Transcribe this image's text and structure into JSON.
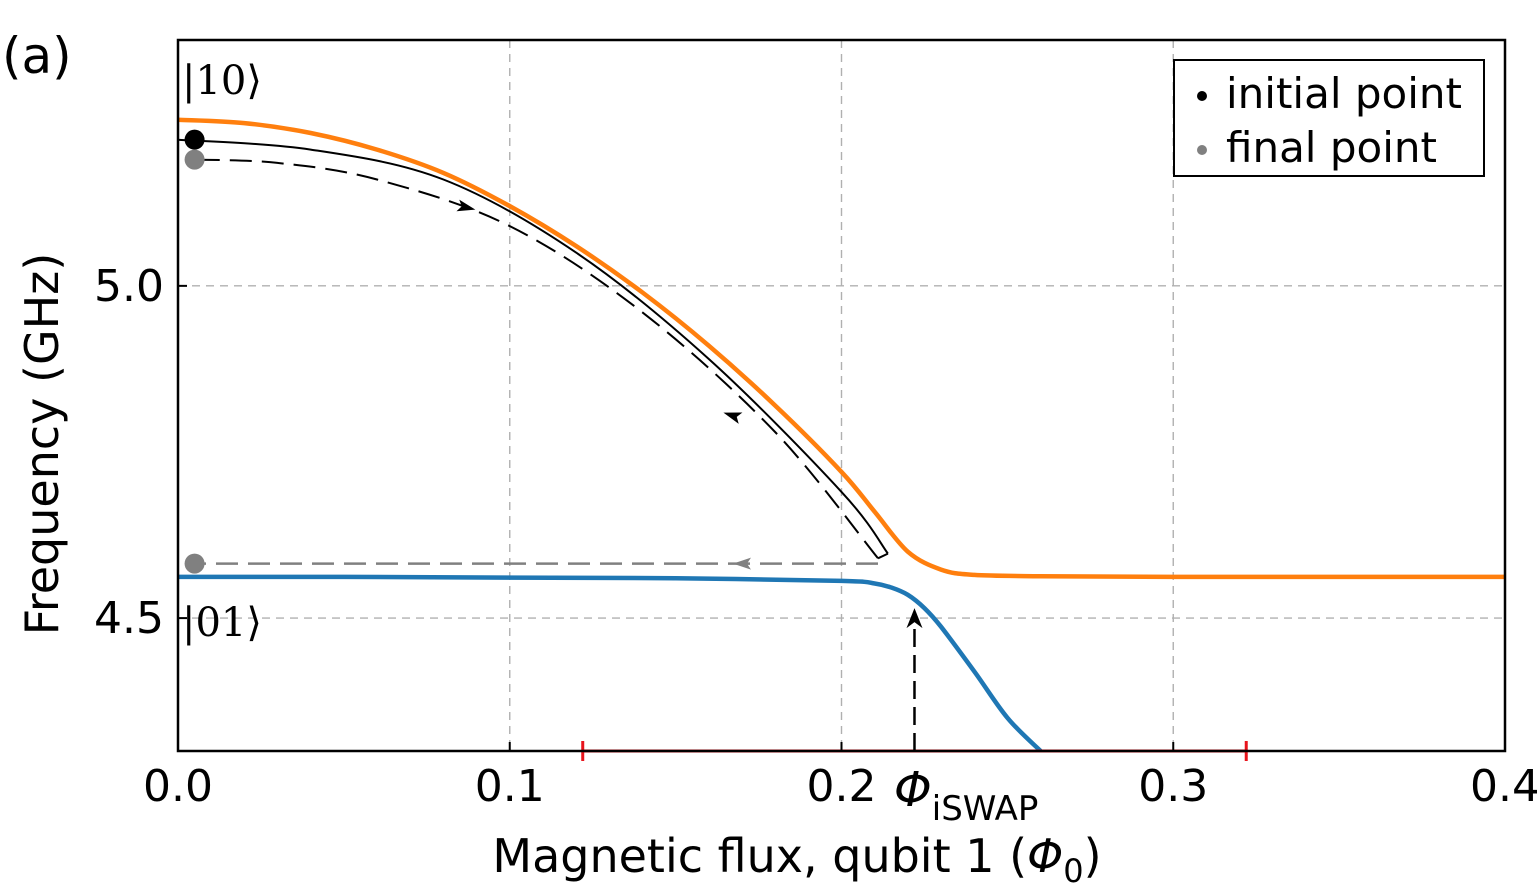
{
  "chart_data": {
    "type": "line",
    "panel_label": "(a)",
    "xlabel_prefix": "Magnetic flux, qubit 1 (",
    "xlabel_symbol": "Φ",
    "xlabel_subscript": "0",
    "xlabel_suffix": ")",
    "ylabel": "Frequency (GHz)",
    "xlim": [
      0.0,
      0.4
    ],
    "ylim": [
      4.3,
      5.37
    ],
    "xticks": [
      0.0,
      0.1,
      0.2,
      0.3,
      0.4
    ],
    "xtick_labels": [
      "0.0",
      "0.1",
      "0.2",
      "0.3",
      "0.4"
    ],
    "yticks": [
      4.5,
      5.0
    ],
    "ytick_labels": [
      "4.5",
      "5.0"
    ],
    "grid": true,
    "legend_position": "top-right",
    "colors": {
      "upper": "#ff7f0e",
      "lower": "#1f77b4",
      "trajectory": "#000000",
      "return_path": "#808080",
      "range": "#e8141c"
    },
    "series": [
      {
        "id": "upper",
        "x": [
          0.0,
          0.02,
          0.04,
          0.06,
          0.08,
          0.1,
          0.12,
          0.14,
          0.16,
          0.18,
          0.2,
          0.21,
          0.22,
          0.23,
          0.24,
          0.26,
          0.3,
          0.35,
          0.4
        ],
        "values": [
          5.25,
          5.245,
          5.23,
          5.205,
          5.17,
          5.12,
          5.06,
          4.99,
          4.91,
          4.82,
          4.72,
          4.66,
          4.6,
          4.573,
          4.565,
          4.563,
          4.562,
          4.562,
          4.562
        ]
      },
      {
        "id": "lower",
        "x": [
          0.0,
          0.05,
          0.1,
          0.15,
          0.2,
          0.21,
          0.215,
          0.22,
          0.225,
          0.23,
          0.24,
          0.25,
          0.26
        ],
        "values": [
          4.562,
          4.562,
          4.561,
          4.56,
          4.556,
          4.552,
          4.546,
          4.535,
          4.515,
          4.487,
          4.42,
          4.35,
          4.3
        ]
      }
    ],
    "trajectory": {
      "outbound_x": [
        0.0,
        0.04,
        0.08,
        0.12,
        0.16,
        0.2,
        0.214
      ],
      "outbound_y": [
        5.22,
        5.205,
        5.16,
        5.05,
        4.89,
        4.69,
        4.597
      ],
      "return_x": [
        0.211,
        0.18,
        0.14,
        0.1,
        0.06,
        0.03,
        0.005
      ],
      "return_y": [
        4.59,
        4.78,
        4.96,
        5.09,
        5.16,
        5.185,
        5.19
      ]
    },
    "gray_return": {
      "x": [
        0.211,
        0.005
      ],
      "values": [
        4.582,
        4.582
      ]
    },
    "points": [
      {
        "name": "initial",
        "x": 0.005,
        "y": 5.22,
        "color": "#000000"
      },
      {
        "name": "final",
        "x": 0.005,
        "y": 5.19,
        "color": "#808080"
      },
      {
        "name": "final-lower",
        "x": 0.005,
        "y": 4.582,
        "color": "#808080"
      }
    ],
    "state_labels": {
      "upper": "|10⟩",
      "lower": "|01⟩"
    },
    "annotation": {
      "symbol": "Φ",
      "subscript": "iSWAP",
      "x": 0.222,
      "arrow_to_y": 4.515
    },
    "range_bar": {
      "x": [
        0.122,
        0.322
      ],
      "y": 4.3
    },
    "legend": [
      {
        "label": "initial point",
        "color": "#000000"
      },
      {
        "label": "final point",
        "color": "#808080"
      }
    ]
  }
}
